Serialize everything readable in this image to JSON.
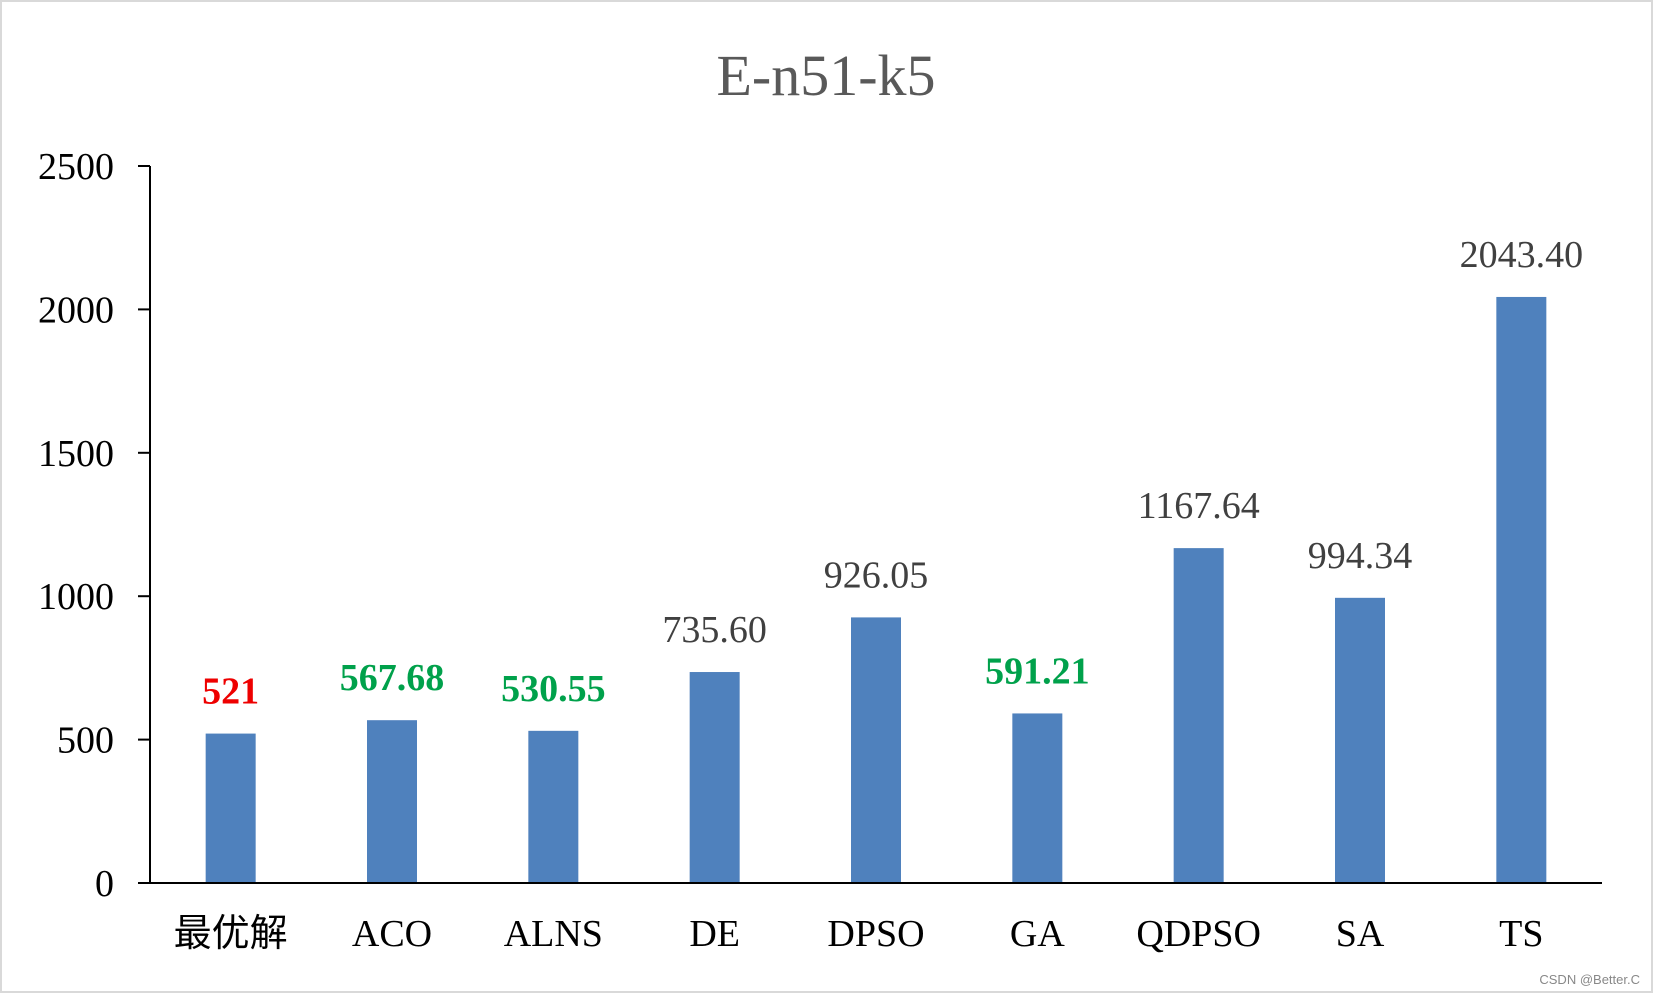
{
  "chart_data": {
    "type": "bar",
    "title": "E-n51-k5",
    "categories": [
      "最优解",
      "ACO",
      "ALNS",
      "DE",
      "DPSO",
      "GA",
      "QDPSO",
      "SA",
      "TS"
    ],
    "values": [
      521,
      567.68,
      530.55,
      735.6,
      926.05,
      591.21,
      1167.64,
      994.34,
      2043.4
    ],
    "data_labels": [
      "521",
      "567.68",
      "530.55",
      "735.60",
      "926.05",
      "591.21",
      "1167.64",
      "994.34",
      "2043.40"
    ],
    "data_label_colors": [
      "#ee0000",
      "#00a14b",
      "#00a14b",
      "#404040",
      "#404040",
      "#00a14b",
      "#404040",
      "#404040",
      "#404040"
    ],
    "data_label_bold": [
      true,
      true,
      true,
      false,
      false,
      true,
      false,
      false,
      false
    ],
    "bar_color": "#4f81bd",
    "ylim": [
      0,
      2500
    ],
    "yticks": [
      0,
      500,
      1000,
      1500,
      2000,
      2500
    ],
    "ytick_labels": [
      "0",
      "500",
      "1000",
      "1500",
      "2000",
      "2500"
    ],
    "xlabel": "",
    "ylabel": "",
    "grid": false,
    "legend": "none"
  },
  "watermark": "CSDN @Better.C"
}
